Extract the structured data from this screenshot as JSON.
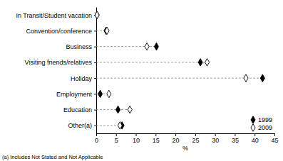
{
  "chart_data": {
    "type": "dot",
    "orientation": "horizontal",
    "categories": [
      "In Transit/Student vacation",
      "Convention/conference",
      "Business",
      "Visiting friends/relatives",
      "Holiday",
      "Employment",
      "Education",
      "Other(a)"
    ],
    "series": [
      {
        "name": "1999",
        "color": "#000000",
        "marker": "diamond",
        "values": [
          0.2,
          2.5,
          15.2,
          26.3,
          42.0,
          1.0,
          5.5,
          6.5
        ]
      },
      {
        "name": "2009",
        "color": "#000000",
        "marker": "open-diamond",
        "values": [
          0.2,
          2.7,
          12.8,
          28.0,
          37.8,
          3.2,
          8.5,
          6.0
        ]
      }
    ],
    "x_label": "%",
    "xlim": [
      0,
      45
    ],
    "xticks": [
      0,
      5,
      10,
      15,
      20,
      25,
      30,
      35,
      40,
      45
    ],
    "legend": "lower right",
    "annotations": [
      "(a) Includes Not Stated and Not Applicable"
    ]
  }
}
